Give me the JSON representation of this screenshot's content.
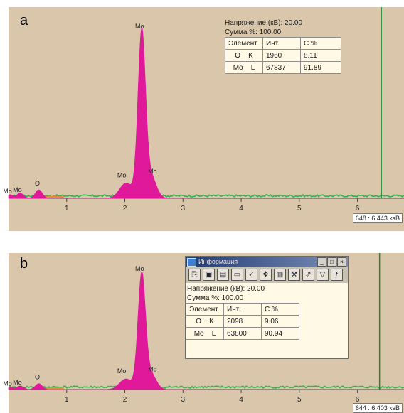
{
  "chart_data": [
    {
      "panel_label": "a",
      "type": "area",
      "xlim": [
        0,
        6.8
      ],
      "x_ticks": [
        1,
        2,
        3,
        4,
        5,
        6
      ],
      "x_tick_labels": [
        "1",
        "2",
        "3",
        "4",
        "5",
        "6"
      ],
      "peaks": [
        {
          "label": "Mo",
          "x": 2.29,
          "height": 0.97
        },
        {
          "label": "Mo",
          "x": 2.02,
          "height": 0.09
        },
        {
          "label": "Mo",
          "x": 2.45,
          "height": 0.13
        },
        {
          "label": "O",
          "x": 0.52,
          "height": 0.05
        },
        {
          "label": "Mo",
          "x": 0.2,
          "height": 0.03
        },
        {
          "label": "Mo",
          "x": 0.03,
          "height": 0.02
        }
      ],
      "marker_x": 6.41,
      "cursor_readout": "648 : 6.443 кэВ",
      "info": {
        "voltage": "Напряжение (кВ): 20.00",
        "sum": "Сумма %: 100.00"
      },
      "table": {
        "headers": [
          "Элемент",
          "Инт.",
          "С %"
        ],
        "rows": [
          {
            "element": "O",
            "line": "K",
            "intensity": "1960",
            "conc": "8.11"
          },
          {
            "element": "Mo",
            "line": "L",
            "intensity": "67837",
            "conc": "91.89"
          }
        ]
      },
      "colors": {
        "peak": "#e0189a",
        "background_spectrum": "#2fb54a",
        "marker": "#1e8a2e",
        "low_energy": "#e38b3a"
      }
    },
    {
      "panel_label": "b",
      "type": "area",
      "xlim": [
        0,
        6.8
      ],
      "x_ticks": [
        1,
        2,
        3,
        4,
        5,
        6
      ],
      "x_tick_labels": [
        "1",
        "2",
        "3",
        "4",
        "5",
        "6"
      ],
      "peaks": [
        {
          "label": "Mo",
          "x": 2.29,
          "height": 0.97
        },
        {
          "label": "Mo",
          "x": 2.02,
          "height": 0.09
        },
        {
          "label": "Mo",
          "x": 2.45,
          "height": 0.13
        },
        {
          "label": "O",
          "x": 0.52,
          "height": 0.05
        },
        {
          "label": "Mo",
          "x": 0.2,
          "height": 0.03
        },
        {
          "label": "Mo",
          "x": 0.03,
          "height": 0.02
        }
      ],
      "marker_x": 6.38,
      "cursor_readout": "644 : 6.403 кэВ",
      "window": {
        "title": "Информация",
        "icons": [
          "copy-icon",
          "save-icon",
          "print-icon",
          "document-icon",
          "check-icon",
          "move-icon",
          "book-icon",
          "tools-icon",
          "export-icon",
          "filter-icon",
          "formula-icon"
        ]
      },
      "info": {
        "voltage": "Напряжение (кВ): 20.00",
        "sum": "Сумма %: 100.00"
      },
      "table": {
        "headers": [
          "Элемент",
          "Инт.",
          "С %"
        ],
        "rows": [
          {
            "element": "O",
            "line": "K",
            "intensity": "2098",
            "conc": "9.06"
          },
          {
            "element": "Mo",
            "line": "L",
            "intensity": "63800",
            "conc": "90.94"
          }
        ]
      },
      "colors": {
        "peak": "#e0189a",
        "background_spectrum": "#2fb54a",
        "marker": "#1e8a2e",
        "low_energy": "#e38b3a"
      }
    }
  ]
}
